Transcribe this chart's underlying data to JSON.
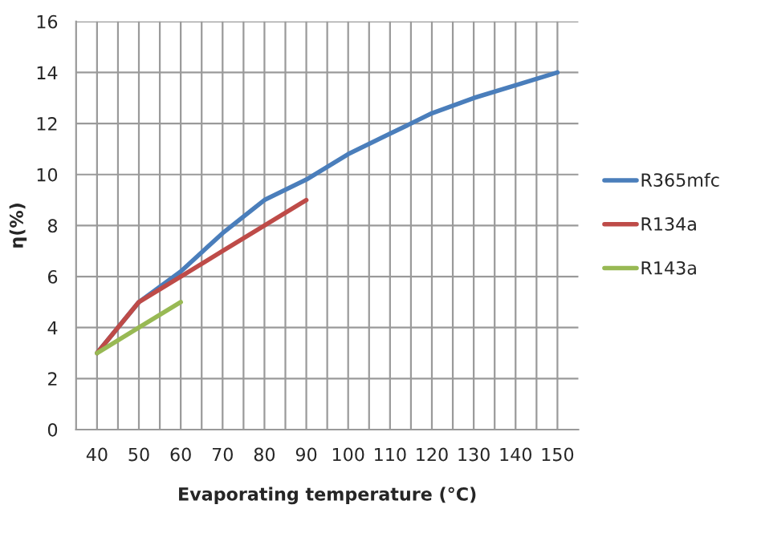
{
  "chart_data": {
    "type": "line",
    "xlabel": "Evaporating temperature (°C)",
    "ylabel": "η(%)",
    "x": [
      40,
      50,
      60,
      70,
      80,
      90,
      100,
      110,
      120,
      130,
      140,
      150
    ],
    "series": [
      {
        "name": "R365mfc",
        "color": "#4a7ebb",
        "values": [
          3,
          5,
          6.2,
          7.7,
          9.0,
          9.8,
          10.8,
          11.6,
          12.4,
          13.0,
          13.5,
          14.0
        ]
      },
      {
        "name": "R134a",
        "color": "#be4b48",
        "x": [
          40,
          50,
          60,
          70,
          80,
          90
        ],
        "values": [
          3,
          5,
          6,
          7,
          8,
          9
        ]
      },
      {
        "name": "R143a",
        "color": "#98b954",
        "x": [
          40,
          50,
          60
        ],
        "values": [
          3,
          4,
          5
        ]
      }
    ],
    "xlim": [
      35,
      155
    ],
    "xticks": [
      40,
      {
        "value": 45,
        "label": null
      },
      50,
      {
        "value": 55,
        "label": null
      },
      60,
      {
        "value": 65,
        "label": null
      },
      70,
      {
        "value": 75,
        "label": null
      },
      80,
      {
        "value": 85,
        "label": null
      },
      90,
      {
        "value": 95,
        "label": null
      },
      100,
      {
        "value": 105,
        "label": null
      },
      110,
      {
        "value": 115,
        "label": null
      },
      120,
      {
        "value": 125,
        "label": null
      },
      130,
      {
        "value": 135,
        "label": null
      },
      140,
      {
        "value": 145,
        "label": null
      },
      150
    ],
    "ylim": [
      0,
      16
    ],
    "yticks": [
      0,
      2,
      4,
      6,
      8,
      10,
      12,
      14,
      16
    ],
    "grid": true,
    "legend": "right",
    "marker": "none",
    "line_style": "solid"
  }
}
